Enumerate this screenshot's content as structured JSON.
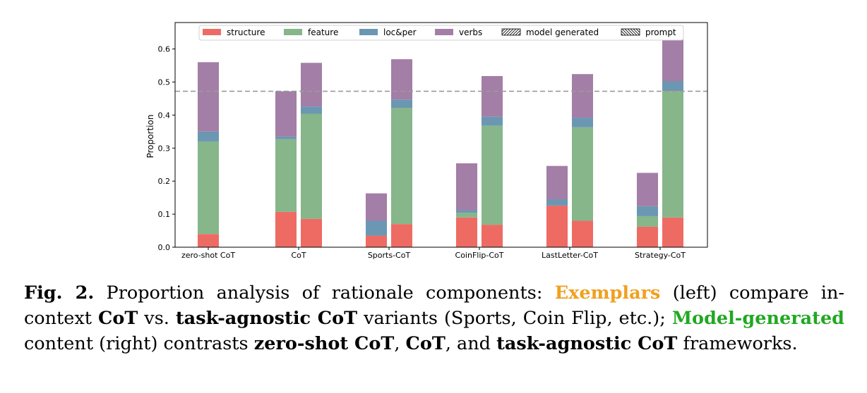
{
  "chart_data": {
    "type": "bar",
    "stacked": true,
    "ylabel": "Proportion",
    "ylim": [
      0,
      0.68
    ],
    "yticks": [
      "0.0",
      "0.1",
      "0.2",
      "0.3",
      "0.4",
      "0.5",
      "0.6"
    ],
    "reference_line": 0.472,
    "categories": [
      "zero-shot CoT",
      "CoT",
      "Sports-CoT",
      "CoinFlip-CoT",
      "LastLetter-CoT",
      "Strategy-CoT"
    ],
    "series": [
      {
        "name": "structure",
        "color": "#ee6b64"
      },
      {
        "name": "feature",
        "color": "#86b68a"
      },
      {
        "name": "loc&per",
        "color": "#6b97b3"
      },
      {
        "name": "verbs",
        "color": "#a37ea6"
      }
    ],
    "legend": [
      "structure",
      "feature",
      "loc&per",
      "verbs",
      "model generated",
      "prompt"
    ],
    "bars": [
      {
        "category": "zero-shot CoT",
        "group": "model generated",
        "values": {
          "structure": 0.04,
          "feature": 0.28,
          "loc&per": 0.03,
          "verbs": 0.21
        }
      },
      {
        "category": "CoT",
        "group": "prompt",
        "values": {
          "structure": 0.107,
          "feature": 0.22,
          "loc&per": 0.008,
          "verbs": 0.137
        }
      },
      {
        "category": "CoT",
        "group": "model generated",
        "values": {
          "structure": 0.086,
          "feature": 0.318,
          "loc&per": 0.022,
          "verbs": 0.132
        }
      },
      {
        "category": "Sports-CoT",
        "group": "prompt",
        "values": {
          "structure": 0.035,
          "feature": 0.0,
          "loc&per": 0.045,
          "verbs": 0.083
        }
      },
      {
        "category": "Sports-CoT",
        "group": "model generated",
        "values": {
          "structure": 0.07,
          "feature": 0.352,
          "loc&per": 0.025,
          "verbs": 0.122
        }
      },
      {
        "category": "CoinFlip-CoT",
        "group": "prompt",
        "values": {
          "structure": 0.09,
          "feature": 0.014,
          "loc&per": 0.008,
          "verbs": 0.142
        }
      },
      {
        "category": "CoinFlip-CoT",
        "group": "model generated",
        "values": {
          "structure": 0.068,
          "feature": 0.3,
          "loc&per": 0.027,
          "verbs": 0.123
        }
      },
      {
        "category": "LastLetter-CoT",
        "group": "prompt",
        "values": {
          "structure": 0.126,
          "feature": 0.0,
          "loc&per": 0.019,
          "verbs": 0.101
        }
      },
      {
        "category": "LastLetter-CoT",
        "group": "model generated",
        "values": {
          "structure": 0.08,
          "feature": 0.283,
          "loc&per": 0.029,
          "verbs": 0.132
        }
      },
      {
        "category": "Strategy-CoT",
        "group": "prompt",
        "values": {
          "structure": 0.062,
          "feature": 0.032,
          "loc&per": 0.03,
          "verbs": 0.101
        }
      },
      {
        "category": "Strategy-CoT",
        "group": "model generated",
        "values": {
          "structure": 0.09,
          "feature": 0.383,
          "loc&per": 0.029,
          "verbs": 0.148
        }
      }
    ]
  },
  "caption": {
    "fig_label": "Fig. 2.",
    "t1": " Proportion analysis of rationale components: ",
    "exemplars": "Exemplars",
    "t2": " (left) compare in-context ",
    "cot1": "CoT",
    "t3": " vs. ",
    "task_agnostic1": "task-agnostic CoT",
    "t4": " variants (Sports, Coin Flip, etc.); ",
    "model_generated": "Model-generated",
    "t5": " content (right) contrasts ",
    "zero_shot": "zero-shot CoT",
    "t6": ", ",
    "cot2": "CoT",
    "t7": ", and ",
    "task_agnostic2": "task-agnostic CoT",
    "t8": " frameworks."
  }
}
